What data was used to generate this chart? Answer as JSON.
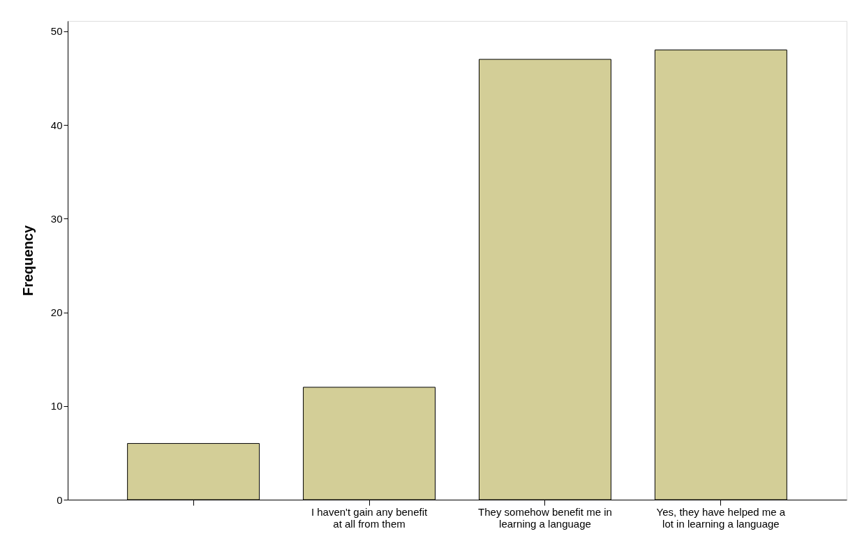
{
  "chart_data": {
    "type": "bar",
    "ylabel": "Frequency",
    "categories": [
      null,
      "I haven't gain any benefit at all from them",
      "They somehow benefit me in learning a language",
      "Yes, they have helped me a lot in learning a language"
    ],
    "values": [
      6,
      12,
      47,
      48
    ],
    "color": "#d3ce97",
    "ylim": [
      0,
      51.1
    ],
    "yticks": [
      0,
      10,
      20,
      30,
      40,
      50
    ],
    "grid": false
  }
}
